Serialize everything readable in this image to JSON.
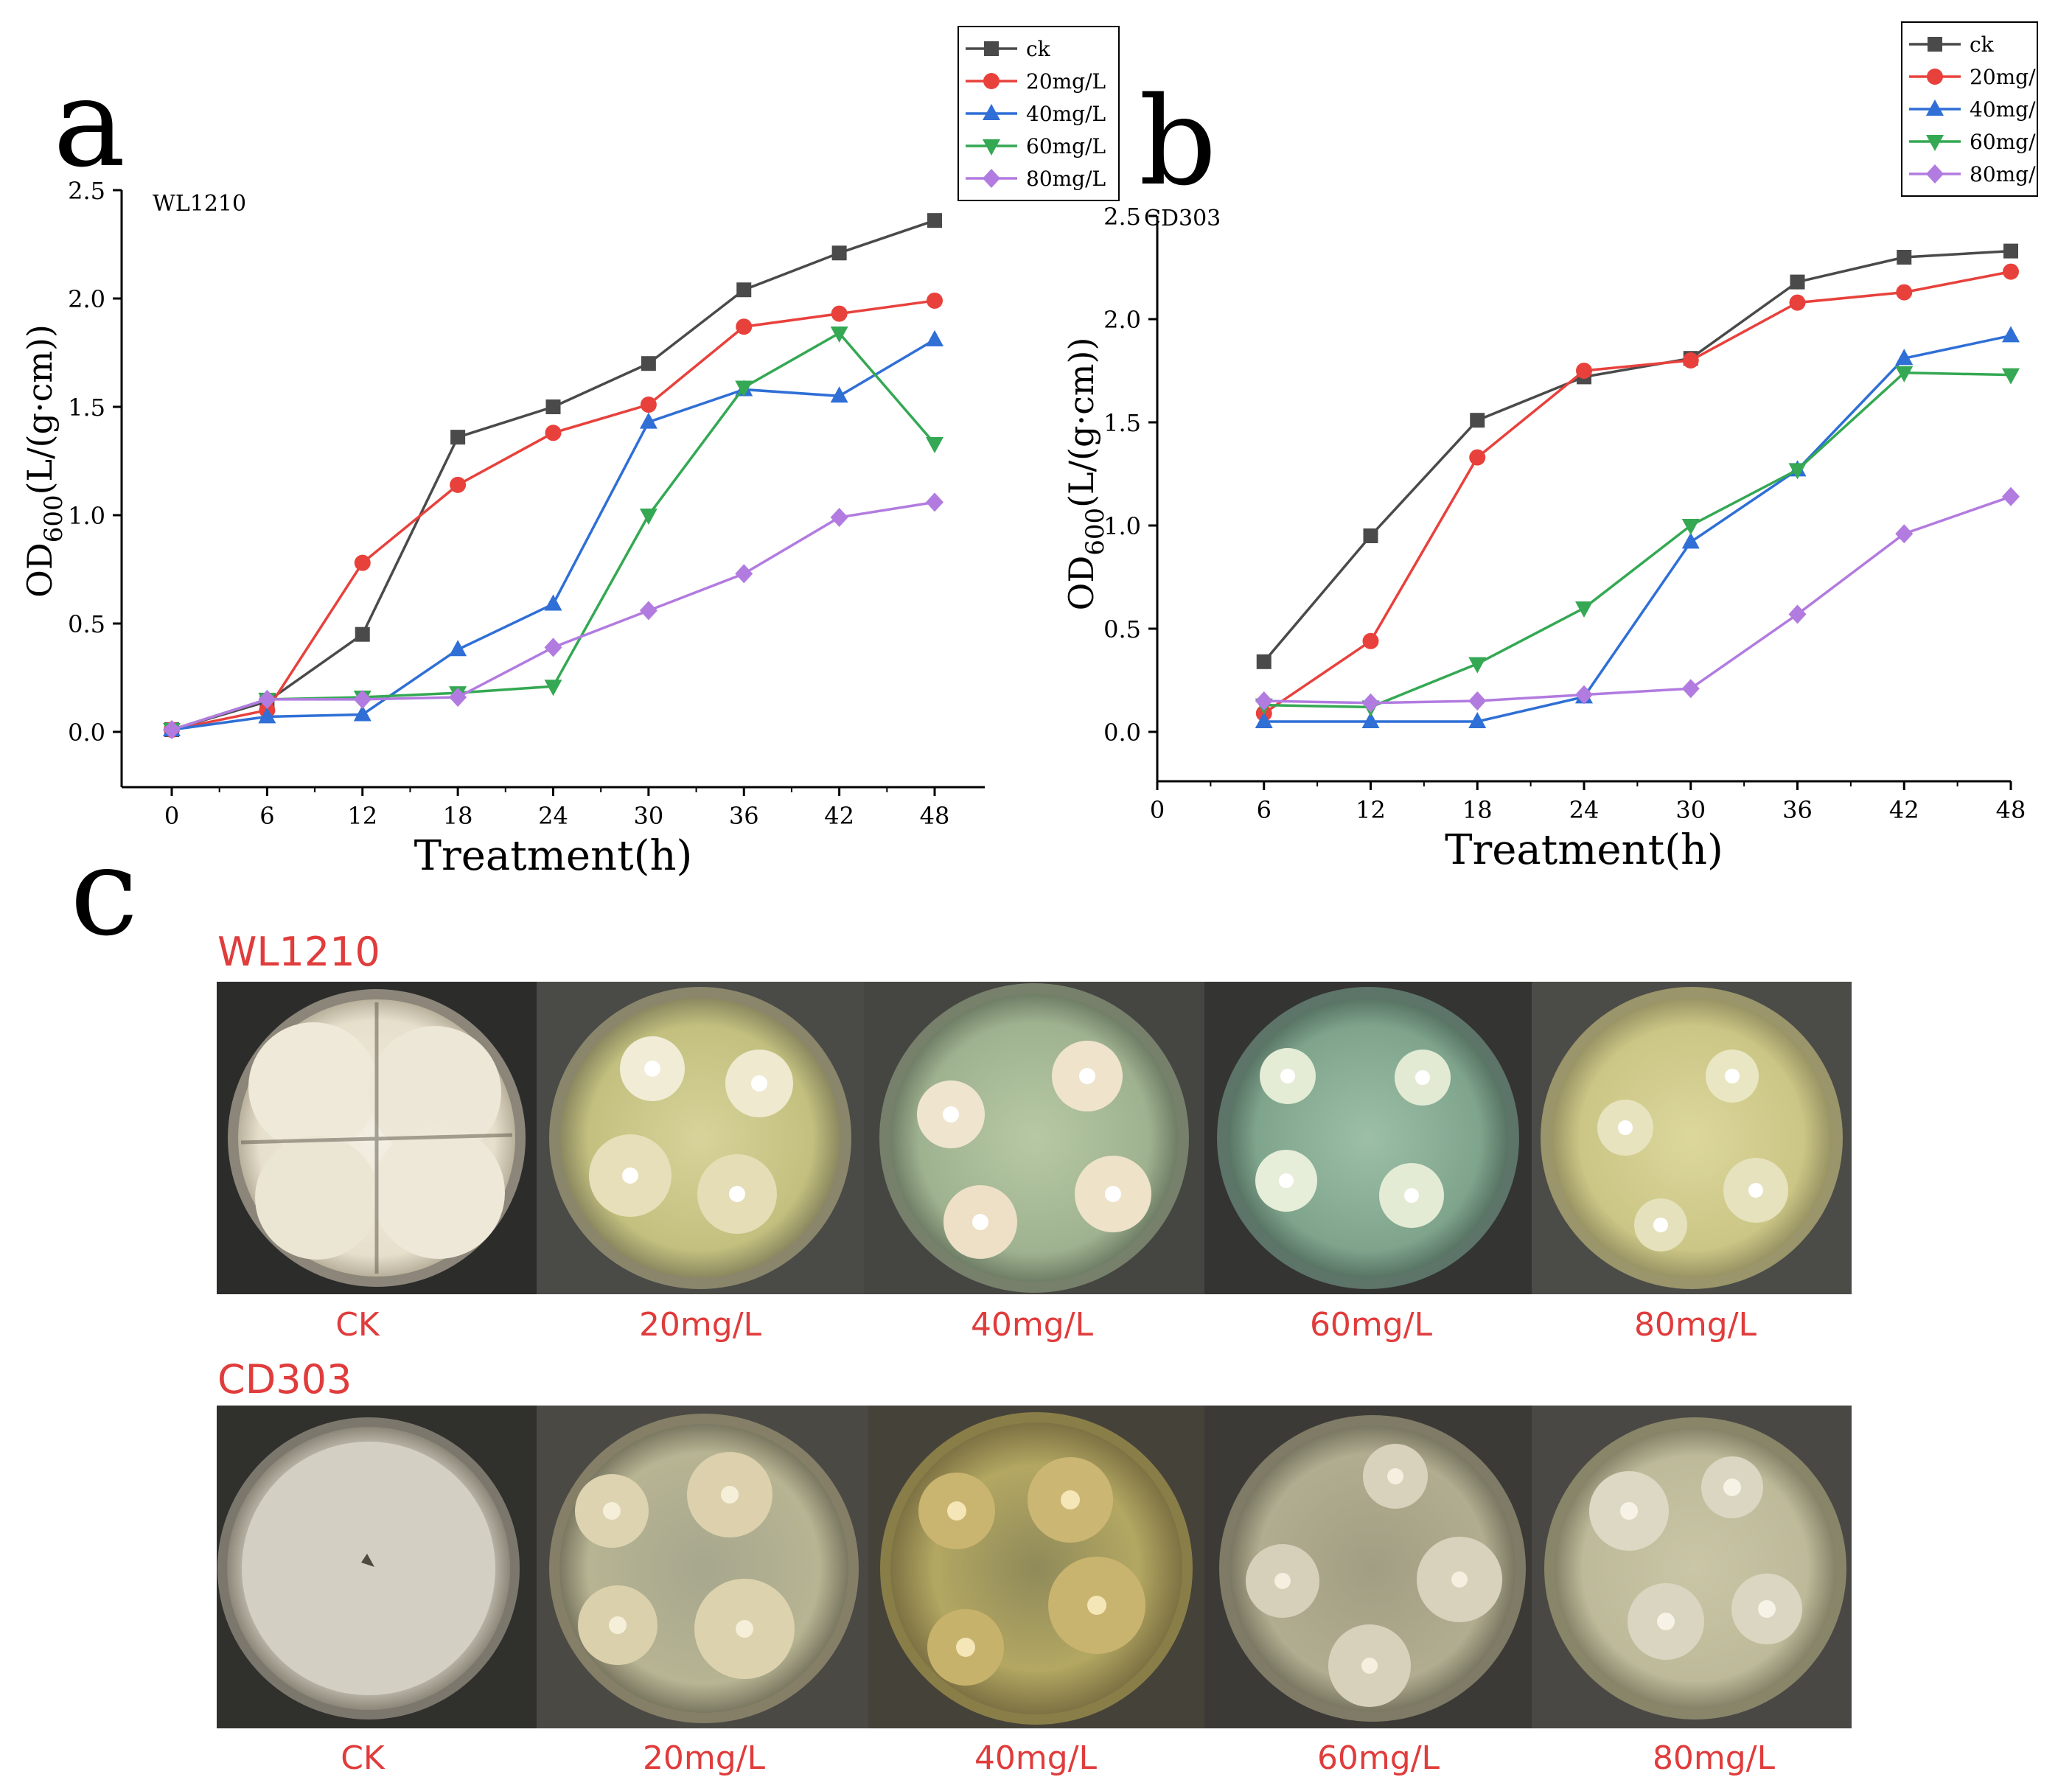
{
  "panel_letters": {
    "a": "a",
    "b": "b",
    "c": "c"
  },
  "colors": {
    "ck": "#4a4a4a",
    "c20": "#e8413c",
    "c40": "#2f6fd6",
    "c60": "#34a853",
    "c80": "#b27be0"
  },
  "chart_data": [
    {
      "type": "line",
      "id": "chart_a",
      "annotation": "WL1210",
      "xlabel": "Treatment(h)",
      "ylabel_main": "OD",
      "ylabel_sub": "600",
      "ylabel_rest": "(L/(g·cm))",
      "xlim": [
        0,
        48
      ],
      "ylim": [
        0,
        2.5
      ],
      "xticks": [
        0,
        6,
        12,
        18,
        24,
        30,
        36,
        42,
        48
      ],
      "yticks": [
        "0.0",
        "0.5",
        "1.0",
        "1.5",
        "2.0",
        "2.5"
      ],
      "x": [
        0,
        6,
        12,
        18,
        24,
        30,
        36,
        42,
        48
      ],
      "legend_position": "top-right",
      "series": [
        {
          "name": "ck",
          "marker": "square",
          "color": "#4a4a4a",
          "values": [
            0.01,
            0.14,
            0.45,
            1.36,
            1.5,
            1.7,
            2.04,
            2.21,
            2.36
          ]
        },
        {
          "name": "20mg/L",
          "marker": "circle",
          "color": "#e8413c",
          "values": [
            0.01,
            0.1,
            0.78,
            1.14,
            1.38,
            1.51,
            1.87,
            1.93,
            1.99
          ]
        },
        {
          "name": "40mg/L",
          "marker": "triangle",
          "color": "#2f6fd6",
          "values": [
            0.01,
            0.07,
            0.08,
            0.38,
            0.59,
            1.43,
            1.58,
            1.55,
            1.81
          ]
        },
        {
          "name": "60mg/L",
          "marker": "tri-down",
          "color": "#34a853",
          "values": [
            0.01,
            0.15,
            0.16,
            0.18,
            0.21,
            1.0,
            1.59,
            1.84,
            1.33
          ]
        },
        {
          "name": "80mg/L",
          "marker": "diamond",
          "color": "#b27be0",
          "values": [
            0.01,
            0.15,
            0.15,
            0.16,
            0.39,
            0.56,
            0.73,
            0.99,
            1.06
          ]
        }
      ]
    },
    {
      "type": "line",
      "id": "chart_b",
      "annotation": "CD303",
      "xlabel": "Treatment(h)",
      "ylabel_main": "OD",
      "ylabel_sub": "600",
      "ylabel_rest": "(L/(g·cm))",
      "xlim": [
        0,
        48
      ],
      "ylim": [
        0,
        2.5
      ],
      "xticks": [
        0,
        6,
        12,
        18,
        24,
        30,
        36,
        42,
        48
      ],
      "yticks": [
        "0.0",
        "0.5",
        "1.0",
        "1.5",
        "2.0",
        "2.5"
      ],
      "x": [
        6,
        12,
        18,
        24,
        30,
        36,
        42,
        48
      ],
      "legend_position": "top-right",
      "series": [
        {
          "name": "ck",
          "marker": "square",
          "color": "#4a4a4a",
          "values": [
            0.34,
            0.95,
            1.51,
            1.72,
            1.81,
            2.18,
            2.3,
            2.33
          ]
        },
        {
          "name": "20mg/",
          "marker": "circle",
          "color": "#e8413c",
          "values": [
            0.09,
            0.44,
            1.33,
            1.75,
            1.8,
            2.08,
            2.13,
            2.23
          ]
        },
        {
          "name": "40mg/",
          "marker": "triangle",
          "color": "#2f6fd6",
          "values": [
            0.05,
            0.05,
            0.05,
            0.17,
            0.92,
            1.27,
            1.81,
            1.92
          ]
        },
        {
          "name": "60mg/",
          "marker": "tri-down",
          "color": "#34a853",
          "values": [
            0.13,
            0.12,
            0.33,
            0.6,
            1.0,
            1.27,
            1.74,
            1.73
          ]
        },
        {
          "name": "80mg/",
          "marker": "diamond",
          "color": "#b27be0",
          "values": [
            0.15,
            0.14,
            0.15,
            0.18,
            0.21,
            0.57,
            0.96,
            1.14
          ]
        }
      ]
    }
  ],
  "panel_c": {
    "rows": [
      {
        "strain": "WL1210",
        "plates": [
          "CK",
          "20mg/L",
          "40mg/L",
          "60mg/L",
          "80mg/L"
        ]
      },
      {
        "strain": "CD303",
        "plates": [
          "CK",
          "20mg/L",
          "40mg/L",
          "60mg/L",
          "80mg/L"
        ]
      }
    ]
  }
}
